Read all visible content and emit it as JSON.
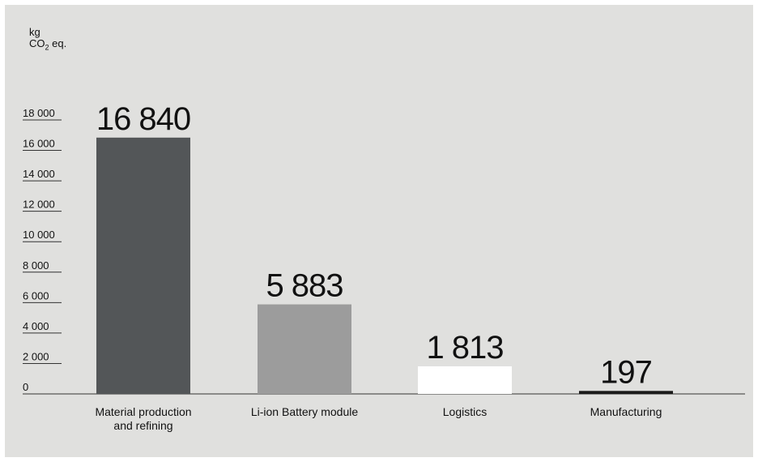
{
  "unit_label": {
    "line1": "kg",
    "line2_main": "CO",
    "line2_sub": "2",
    "line2_rest": " eq."
  },
  "colors": {
    "background": "#e0e0de",
    "axis": "#333333",
    "bars": [
      "#535658",
      "#9c9c9c",
      "#ffffff",
      "#1a1a1a"
    ]
  },
  "chart_data": {
    "type": "bar",
    "title": "",
    "xlabel": "",
    "ylabel": "kg CO2 eq.",
    "ylim": [
      0,
      18000
    ],
    "yticks": [
      0,
      2000,
      4000,
      6000,
      8000,
      10000,
      12000,
      14000,
      16000,
      18000
    ],
    "ytick_labels": [
      "0",
      "2 000",
      "4 000",
      "6 000",
      "8 000",
      "10 000",
      "12 000",
      "14 000",
      "16 000",
      "18 000"
    ],
    "categories": [
      [
        "Material production",
        "and refining"
      ],
      [
        "Li-ion Battery module"
      ],
      [
        "Logistics"
      ],
      [
        "Manufacturing"
      ]
    ],
    "values": [
      16840,
      5883,
      1813,
      197
    ],
    "value_labels": [
      "16 840",
      "5 883",
      "1 813",
      "197"
    ],
    "grid": false,
    "legend": "none"
  }
}
